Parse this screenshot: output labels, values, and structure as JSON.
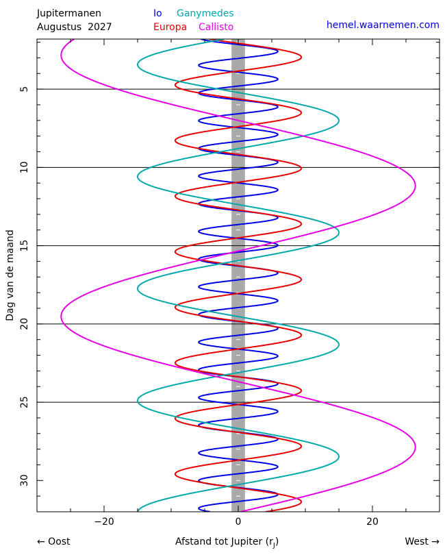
{
  "header": {
    "title_line1": "Jupitermanen",
    "title_line2": "Augustus",
    "year": "2027",
    "website": "hemel.waarnemen.com"
  },
  "legend": [
    {
      "name": "Io",
      "color": "#0000e6"
    },
    {
      "name": "Ganymedes",
      "color": "#00aaaa"
    },
    {
      "name": "Europa",
      "color": "#e60000"
    },
    {
      "name": "Callisto",
      "color": "#e600e6"
    }
  ],
  "footer": {
    "east_label": "← Oost",
    "axis_label": "Afstand tot Jupiter (r",
    "axis_label_sub": "J",
    "axis_label_end": ")",
    "west_label": "West →"
  },
  "chart_data": {
    "type": "line",
    "title": "Jupitermanen Augustus 2027",
    "xlabel": "Afstand tot Jupiter (rJ)",
    "ylabel": "Dag van de maand",
    "xlim": [
      -30,
      30
    ],
    "ylim": [
      1.8,
      32
    ],
    "y_inverted": true,
    "xticks": [
      -20,
      0,
      20
    ],
    "yticks": [
      5,
      10,
      15,
      20,
      25,
      30
    ],
    "grid_lines_y": [
      5,
      10,
      15,
      20,
      25
    ],
    "jupiter_band": {
      "from": -1,
      "to": 1,
      "color": "#a9a9a9"
    },
    "series": [
      {
        "name": "Io",
        "color": "#0000e6",
        "amplitude": 5.9,
        "period_days": 1.769,
        "phase_day": 2.15
      },
      {
        "name": "Europa",
        "color": "#e60000",
        "amplitude": 9.4,
        "period_days": 3.551,
        "phase_day": 2.07
      },
      {
        "name": "Ganymedes",
        "color": "#00aaaa",
        "amplitude": 15.0,
        "period_days": 7.155,
        "phase_day": 5.22
      },
      {
        "name": "Callisto",
        "color": "#e600e6",
        "amplitude": 26.4,
        "period_days": 16.689,
        "phase_day": 7.0
      }
    ]
  }
}
